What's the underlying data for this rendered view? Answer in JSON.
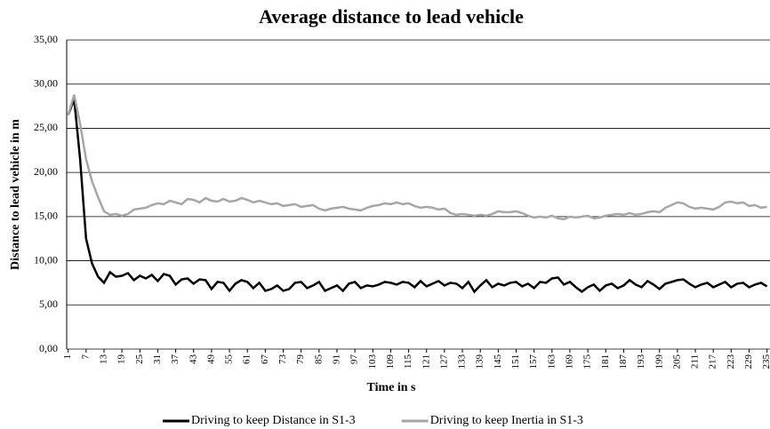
{
  "chart_data": {
    "type": "line",
    "title": "Average distance to lead vehicle",
    "x_label": "Time in s",
    "y_label": "Distance to lead vehicle in m",
    "x": [
      1,
      3,
      5,
      7,
      9,
      11,
      13,
      15,
      17,
      19,
      21,
      23,
      25,
      27,
      29,
      31,
      33,
      35,
      37,
      39,
      41,
      43,
      45,
      47,
      49,
      51,
      53,
      55,
      57,
      59,
      61,
      63,
      65,
      67,
      69,
      71,
      73,
      75,
      77,
      79,
      81,
      83,
      85,
      87,
      89,
      91,
      93,
      95,
      97,
      99,
      101,
      103,
      105,
      107,
      109,
      111,
      113,
      115,
      117,
      119,
      121,
      123,
      125,
      127,
      129,
      131,
      133,
      135,
      137,
      139,
      141,
      143,
      145,
      147,
      149,
      151,
      153,
      155,
      157,
      159,
      161,
      163,
      165,
      167,
      169,
      171,
      173,
      175,
      177,
      179,
      181,
      183,
      185,
      187,
      189,
      191,
      193,
      195,
      197,
      199,
      201,
      203,
      205,
      207,
      209,
      211,
      213,
      215,
      217,
      219,
      221,
      223,
      225,
      227,
      229,
      231,
      233,
      235
    ],
    "series": [
      {
        "name": "Driving to keep Distance in S1-3",
        "color": "#000000",
        "values": [
          26.5,
          28.3,
          21.5,
          12.5,
          9.7,
          8.2,
          7.5,
          8.7,
          8.2,
          8.3,
          8.6,
          7.8,
          8.3,
          8.0,
          8.4,
          7.7,
          8.5,
          8.3,
          7.3,
          7.9,
          8.0,
          7.4,
          7.9,
          7.8,
          6.8,
          7.6,
          7.5,
          6.6,
          7.4,
          7.8,
          7.6,
          6.9,
          7.5,
          6.6,
          6.8,
          7.2,
          6.6,
          6.8,
          7.5,
          7.6,
          6.9,
          7.2,
          7.6,
          6.6,
          6.9,
          7.2,
          6.6,
          7.4,
          7.6,
          6.9,
          7.2,
          7.1,
          7.3,
          7.6,
          7.5,
          7.3,
          7.6,
          7.5,
          7.0,
          7.7,
          7.1,
          7.4,
          7.7,
          7.2,
          7.5,
          7.4,
          6.9,
          7.6,
          6.5,
          7.2,
          7.8,
          7.0,
          7.4,
          7.2,
          7.5,
          7.6,
          7.1,
          7.4,
          6.9,
          7.6,
          7.5,
          8.0,
          8.1,
          7.3,
          7.6,
          7.0,
          6.5,
          7.0,
          7.3,
          6.6,
          7.2,
          7.4,
          6.9,
          7.2,
          7.8,
          7.3,
          7.0,
          7.7,
          7.3,
          6.8,
          7.4,
          7.6,
          7.8,
          7.9,
          7.4,
          7.0,
          7.3,
          7.5,
          7.0,
          7.3,
          7.6,
          7.0,
          7.4,
          7.5,
          7.0,
          7.3,
          7.5,
          7.1
        ]
      },
      {
        "name": "Driving to keep Inertia in S1-3",
        "color": "#a6a6a6",
        "values": [
          26.5,
          28.8,
          25.5,
          21.5,
          19.0,
          17.2,
          15.6,
          15.2,
          15.3,
          15.1,
          15.3,
          15.8,
          15.9,
          16.0,
          16.3,
          16.5,
          16.4,
          16.8,
          16.6,
          16.4,
          17.0,
          16.9,
          16.6,
          17.1,
          16.8,
          16.7,
          17.0,
          16.7,
          16.8,
          17.1,
          16.9,
          16.6,
          16.8,
          16.6,
          16.4,
          16.5,
          16.2,
          16.3,
          16.4,
          16.1,
          16.2,
          16.3,
          15.9,
          15.7,
          15.9,
          16.0,
          16.1,
          15.9,
          15.8,
          15.7,
          16.0,
          16.2,
          16.3,
          16.5,
          16.4,
          16.6,
          16.4,
          16.5,
          16.2,
          16.0,
          16.1,
          16.0,
          15.8,
          15.9,
          15.4,
          15.2,
          15.3,
          15.2,
          15.1,
          15.2,
          15.1,
          15.3,
          15.6,
          15.5,
          15.5,
          15.6,
          15.4,
          15.1,
          14.9,
          15.0,
          14.9,
          15.1,
          14.8,
          14.7,
          15.0,
          14.9,
          15.0,
          15.1,
          14.8,
          14.9,
          15.1,
          15.2,
          15.3,
          15.2,
          15.4,
          15.2,
          15.3,
          15.5,
          15.6,
          15.5,
          16.0,
          16.3,
          16.6,
          16.5,
          16.1,
          15.9,
          16.0,
          15.9,
          15.8,
          16.1,
          16.6,
          16.7,
          16.5,
          16.6,
          16.2,
          16.3,
          16.0,
          16.1
        ]
      }
    ],
    "xlim": [
      0.5,
      236
    ],
    "xticks": [
      1,
      7,
      13,
      19,
      25,
      31,
      37,
      43,
      49,
      55,
      61,
      67,
      73,
      79,
      85,
      91,
      97,
      103,
      109,
      115,
      121,
      127,
      133,
      139,
      145,
      151,
      157,
      163,
      169,
      175,
      181,
      187,
      193,
      199,
      205,
      211,
      217,
      223,
      229,
      235
    ],
    "ylim": [
      0,
      35
    ],
    "yticks": [
      {
        "value": 0,
        "label": "0,00"
      },
      {
        "value": 5,
        "label": "5,00"
      },
      {
        "value": 10,
        "label": "10,00"
      },
      {
        "value": 15,
        "label": "15,00"
      },
      {
        "value": 20,
        "label": "20,00"
      },
      {
        "value": 25,
        "label": "25,00"
      },
      {
        "value": 30,
        "label": "30,00"
      },
      {
        "value": 35,
        "label": "35,00"
      }
    ],
    "grid": true,
    "legend": "bottom"
  }
}
